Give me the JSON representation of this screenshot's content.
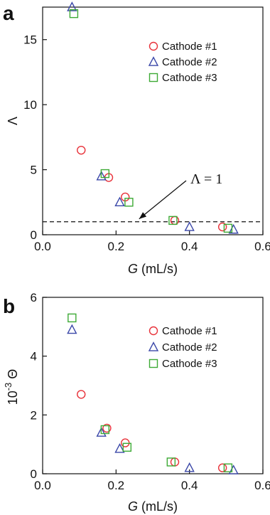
{
  "chart_data": [
    {
      "panel": "a",
      "type": "scatter",
      "title": "",
      "xlabel_italic": "G",
      "xlabel_units": " (mL/s)",
      "ylabel": "Λ",
      "xlim": [
        0.0,
        0.6
      ],
      "ylim": [
        0,
        17.5
      ],
      "xticks": [
        "0.0",
        "0.2",
        "0.4",
        "0.6"
      ],
      "yticks": [
        "0",
        "5",
        "10",
        "15"
      ],
      "legend_position": "top-right",
      "reference_line": {
        "y": 1,
        "style": "dashed"
      },
      "annotation": {
        "text": "Λ = 1",
        "arrow_to_x": 0.29,
        "arrow_to_y": 1
      },
      "series": [
        {
          "name": "Cathode #1",
          "marker": "circle",
          "color": "#e8323a",
          "x": [
            0.105,
            0.18,
            0.225,
            0.36,
            0.49
          ],
          "y": [
            6.5,
            4.4,
            2.9,
            1.1,
            0.6
          ]
        },
        {
          "name": "Cathode #2",
          "marker": "triangle",
          "color": "#3a47a8",
          "x": [
            0.08,
            0.16,
            0.21,
            0.4,
            0.52
          ],
          "y": [
            17.5,
            4.5,
            2.5,
            0.6,
            0.4
          ]
        },
        {
          "name": "Cathode #3",
          "marker": "square",
          "color": "#3daa35",
          "x": [
            0.085,
            0.17,
            0.235,
            0.355,
            0.505
          ],
          "y": [
            17.0,
            4.7,
            2.5,
            1.1,
            0.5
          ]
        }
      ]
    },
    {
      "panel": "b",
      "type": "scatter",
      "title": "",
      "xlabel_italic": "G",
      "xlabel_units": " (mL/s)",
      "ylabel": "10⁻³ Θ",
      "xlim": [
        0.0,
        0.6
      ],
      "ylim": [
        0,
        6
      ],
      "xticks": [
        "0.0",
        "0.2",
        "0.4",
        "0.6"
      ],
      "yticks": [
        "0",
        "2",
        "4",
        "6"
      ],
      "legend_position": "top-right",
      "series": [
        {
          "name": "Cathode #1",
          "marker": "circle",
          "color": "#e8323a",
          "x": [
            0.105,
            0.175,
            0.225,
            0.36,
            0.49
          ],
          "y": [
            2.7,
            1.55,
            1.05,
            0.4,
            0.2
          ]
        },
        {
          "name": "Cathode #2",
          "marker": "triangle",
          "color": "#3a47a8",
          "x": [
            0.08,
            0.16,
            0.21,
            0.4,
            0.52
          ],
          "y": [
            4.9,
            1.4,
            0.85,
            0.2,
            0.12
          ]
        },
        {
          "name": "Cathode #3",
          "marker": "square",
          "color": "#3daa35",
          "x": [
            0.08,
            0.17,
            0.23,
            0.35,
            0.505
          ],
          "y": [
            5.3,
            1.5,
            0.9,
            0.4,
            0.2
          ]
        }
      ]
    }
  ]
}
